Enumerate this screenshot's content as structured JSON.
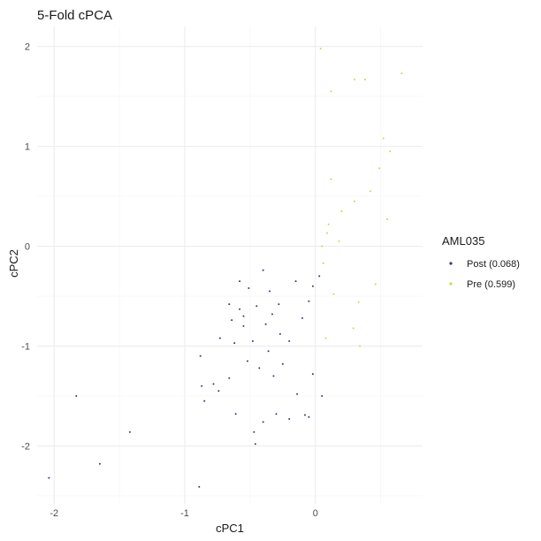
{
  "chart_data": {
    "type": "scatter",
    "title": "5-Fold cPCA",
    "xlabel": "cPC1",
    "ylabel": "cPC2",
    "xlim": [
      -2.13,
      0.82
    ],
    "ylim": [
      -2.58,
      2.2
    ],
    "x_ticks": [
      -2,
      -1,
      0
    ],
    "y_ticks": [
      -2,
      -1,
      0,
      1,
      2
    ],
    "x_tick_labels": [
      "-2",
      "-1",
      "0"
    ],
    "y_tick_labels": [
      "-2",
      "-1",
      "0",
      "1",
      "2"
    ],
    "grid": true,
    "legend": {
      "title": "AML035",
      "position": "right",
      "entries": [
        {
          "label": "Post (0.068)",
          "color": "#482f6e"
        },
        {
          "label": "Pre (0.599)",
          "color": "#bfe03a"
        }
      ]
    },
    "series": [
      {
        "name": "Post (0.068)",
        "color": "#482f6e",
        "points": [
          [
            -2.04,
            -2.32
          ],
          [
            -1.83,
            -1.5
          ],
          [
            -1.65,
            -2.18
          ],
          [
            -1.42,
            -1.86
          ],
          [
            -0.89,
            -2.41
          ],
          [
            -0.88,
            -1.1
          ],
          [
            -0.87,
            -1.4
          ],
          [
            -0.85,
            -1.55
          ],
          [
            -0.78,
            -1.38
          ],
          [
            -0.74,
            -1.45
          ],
          [
            -0.73,
            -0.92
          ],
          [
            -0.66,
            -1.32
          ],
          [
            -0.64,
            -0.74
          ],
          [
            -0.61,
            -1.68
          ],
          [
            -0.58,
            -0.63
          ],
          [
            -0.58,
            -0.35
          ],
          [
            -0.55,
            -0.8
          ],
          [
            -0.51,
            -0.42
          ],
          [
            -0.46,
            -1.98
          ],
          [
            -0.47,
            -1.86
          ],
          [
            -0.4,
            -1.76
          ],
          [
            -0.4,
            -0.24
          ],
          [
            -0.35,
            -0.45
          ],
          [
            -0.3,
            -1.68
          ],
          [
            -0.2,
            -1.73
          ],
          [
            -0.14,
            -1.48
          ],
          [
            -0.08,
            -1.69
          ],
          [
            -0.05,
            -1.71
          ],
          [
            0.05,
            -1.5
          ],
          [
            -0.02,
            -1.28
          ],
          [
            -0.28,
            -0.58
          ],
          [
            -0.48,
            -0.95
          ],
          [
            -0.27,
            -0.88
          ],
          [
            -0.15,
            -0.35
          ],
          [
            -0.62,
            -0.97
          ],
          [
            -0.52,
            -1.15
          ],
          [
            -0.43,
            -1.22
          ],
          [
            -0.36,
            -1.05
          ],
          [
            -0.32,
            -1.3
          ],
          [
            -0.25,
            -1.18
          ],
          [
            -0.2,
            -0.95
          ],
          [
            -0.1,
            -0.72
          ],
          [
            -0.05,
            -0.55
          ],
          [
            -0.02,
            -0.4
          ],
          [
            0.03,
            -0.3
          ],
          [
            -0.66,
            -0.58
          ],
          [
            -0.55,
            -0.7
          ],
          [
            -0.45,
            -0.6
          ],
          [
            -0.38,
            -0.78
          ],
          [
            -0.33,
            -0.68
          ]
        ]
      },
      {
        "name": "Pre (0.599)",
        "color": "#bfe03a",
        "points": [
          [
            0.04,
            1.98
          ],
          [
            0.66,
            1.73
          ],
          [
            0.3,
            1.67
          ],
          [
            0.38,
            1.67
          ],
          [
            0.12,
            1.55
          ],
          [
            0.52,
            1.08
          ],
          [
            0.49,
            0.78
          ],
          [
            0.57,
            0.95
          ],
          [
            0.42,
            0.55
          ],
          [
            0.2,
            0.35
          ],
          [
            0.55,
            0.27
          ],
          [
            0.12,
            0.67
          ],
          [
            0.3,
            0.45
          ],
          [
            0.18,
            0.05
          ],
          [
            0.46,
            -0.38
          ],
          [
            0.33,
            -0.56
          ],
          [
            0.34,
            -1.0
          ],
          [
            0.29,
            -0.82
          ],
          [
            0.14,
            -0.48
          ],
          [
            0.08,
            -0.92
          ],
          [
            0.06,
            -0.17
          ],
          [
            0.09,
            0.13
          ],
          [
            0.05,
            0.0
          ],
          [
            0.1,
            0.22
          ]
        ]
      }
    ]
  }
}
